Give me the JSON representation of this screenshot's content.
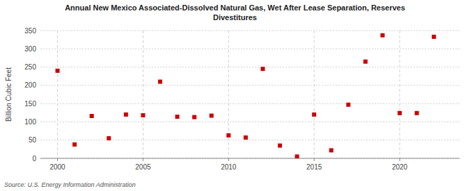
{
  "chart_data": {
    "type": "scatter",
    "title": "Annual New Mexico Associated-Dissolved Natural Gas, Wet After Lease Separation, Reserves\nDivestitures",
    "y_label": "Billion Cubic Feet",
    "source": "Source: U.S. Energy Information Administration",
    "x": [
      2000,
      2001,
      2002,
      2003,
      2004,
      2005,
      2006,
      2007,
      2008,
      2009,
      2010,
      2011,
      2012,
      2013,
      2014,
      2015,
      2016,
      2017,
      2018,
      2019,
      2020,
      2021,
      2022
    ],
    "values": [
      240,
      38,
      116,
      55,
      120,
      118,
      210,
      114,
      113,
      117,
      63,
      57,
      245,
      35,
      5,
      120,
      22,
      147,
      265,
      337,
      124,
      124,
      333
    ],
    "color": "#cc0000",
    "marker": "square",
    "xlim": [
      1999.0,
      2023.5
    ],
    "xticks": [
      2000,
      2005,
      2010,
      2015,
      2020
    ],
    "ylim": [
      0,
      350
    ],
    "yticks": [
      0,
      50,
      100,
      150,
      200,
      250,
      300,
      350
    ],
    "grid": true
  }
}
